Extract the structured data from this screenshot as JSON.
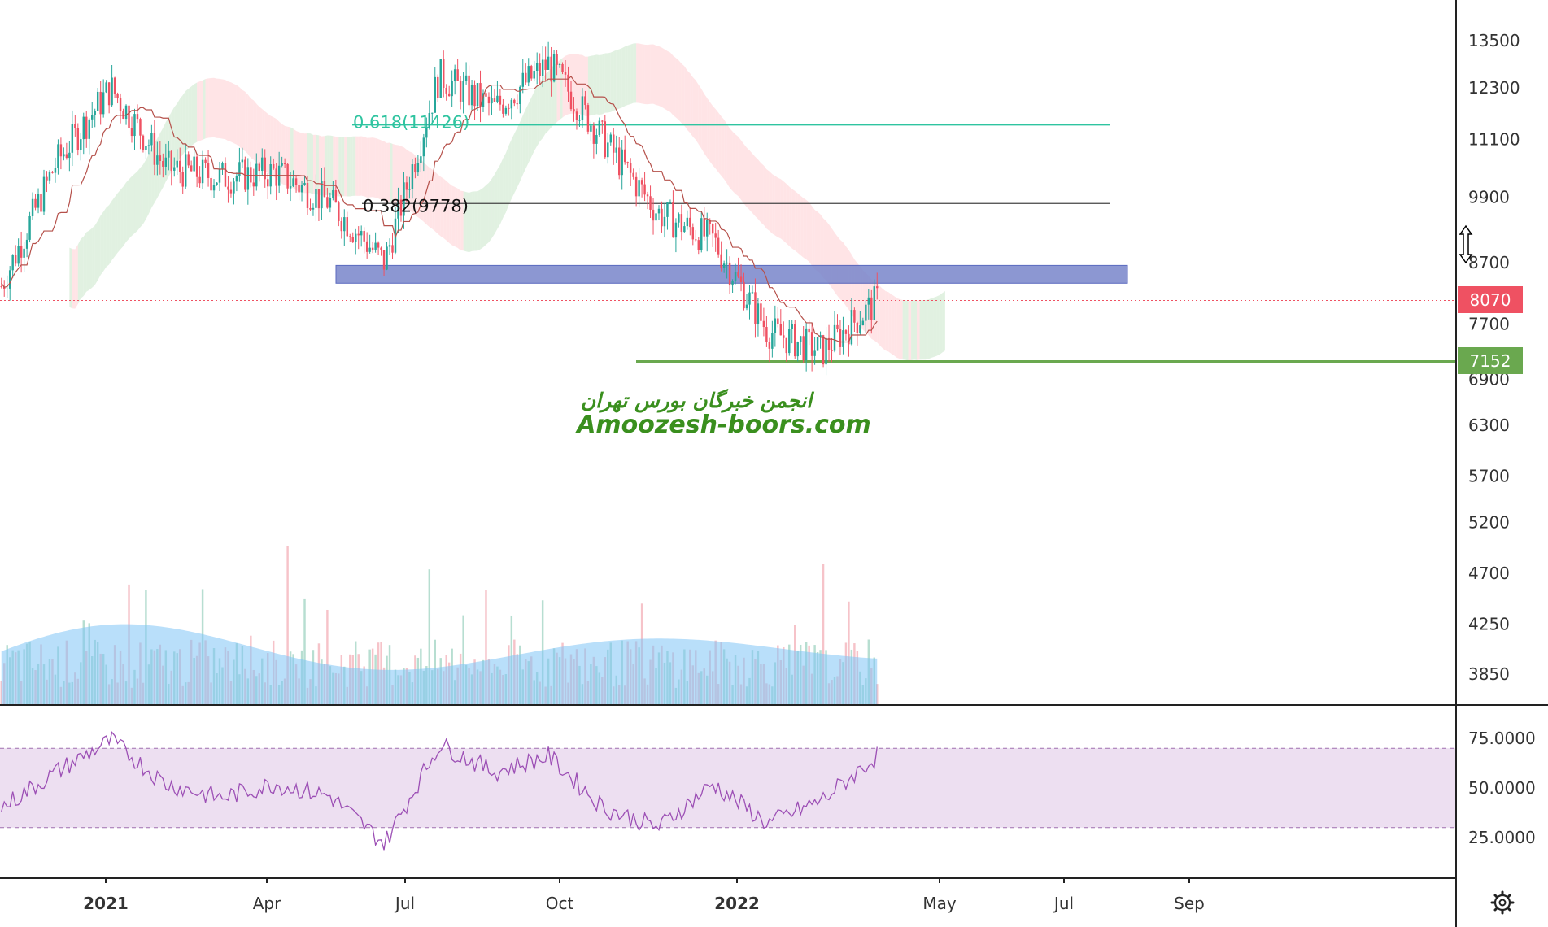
{
  "price_axis": {
    "ticks": [
      "13500",
      "12300",
      "11100",
      "9900",
      "8700",
      "7700",
      "6900",
      "6300",
      "5700",
      "5200",
      "4700",
      "4250",
      "3850"
    ],
    "current_price": "8070",
    "current_price_color": "#ef5162",
    "support_price": "7152",
    "support_color": "#6aa84f"
  },
  "rsi_axis": {
    "ticks": [
      "75.0000",
      "50.0000",
      "25.0000"
    ]
  },
  "time_axis": {
    "ticks": [
      "2021",
      "Apr",
      "Jul",
      "Oct",
      "2022",
      "May",
      "Jul",
      "Sep"
    ],
    "bold": [
      "2021",
      "2022"
    ]
  },
  "fib_levels": [
    {
      "label": "0.618(11426)",
      "color": "#2fc4a0"
    },
    {
      "label": "0.382(9778)",
      "color": "#111111"
    }
  ],
  "watermark": {
    "line1": "انجمن خبرگان بورس تهران",
    "line2": "Amoozesh-boors.com"
  },
  "colors": {
    "up": "#26a69a",
    "down": "#ef5162",
    "zone": "#7986cb",
    "rsi": "#9c4fb5",
    "rsi_band": "#e9d7ee",
    "cloud_bull": "#c8e6c9",
    "cloud_bear": "#ffcdd2",
    "volume_ma": "#7fc4f5"
  },
  "chart_data": {
    "type": "candlestick",
    "x": [
      "2020-11",
      "2020-12",
      "2021-01",
      "2021-02",
      "2021-03",
      "2021-04",
      "2021-05",
      "2021-06",
      "2021-07",
      "2021-08",
      "2021-09",
      "2021-10",
      "2021-11",
      "2021-12",
      "2022-01",
      "2022-02",
      "2022-03"
    ],
    "close": [
      8300,
      10600,
      12300,
      10500,
      10300,
      10400,
      9800,
      8700,
      12600,
      11800,
      12900,
      11100,
      9600,
      9100,
      7600,
      7300,
      8070
    ],
    "fibonacci": [
      {
        "ratio": 0.618,
        "price": 11426
      },
      {
        "ratio": 0.382,
        "price": 9778
      }
    ],
    "support": 7152,
    "zone": [
      8350,
      8650
    ],
    "rsi_bands": [
      70,
      30
    ],
    "rsi": [
      40,
      58,
      74,
      52,
      45,
      52,
      46,
      22,
      72,
      58,
      66,
      40,
      30,
      52,
      32,
      44,
      66
    ],
    "y_scale": "log"
  }
}
